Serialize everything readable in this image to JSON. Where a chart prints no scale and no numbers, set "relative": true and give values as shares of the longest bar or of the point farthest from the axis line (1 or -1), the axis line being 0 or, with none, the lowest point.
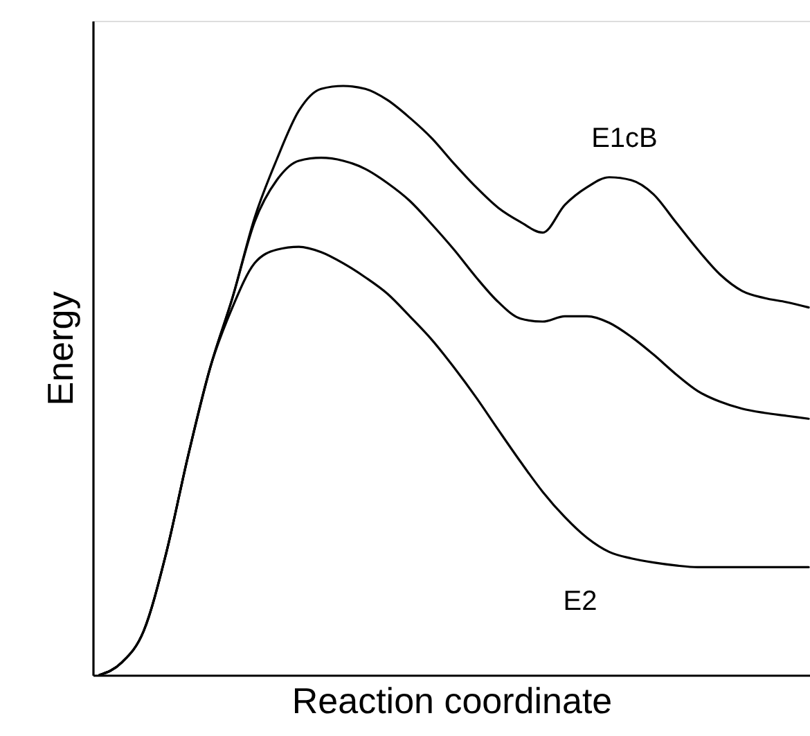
{
  "chart_data": {
    "type": "line",
    "relative": true,
    "xlabel": "Reaction coordinate",
    "ylabel": "Energy",
    "marker": "none",
    "line_style": "solid",
    "categories": [
      null,
      null,
      null,
      null,
      null,
      null,
      null,
      null,
      null,
      null,
      null,
      null,
      null,
      null,
      null,
      null,
      null,
      null,
      null,
      null,
      null,
      null,
      null,
      null,
      null,
      null,
      null,
      null,
      null,
      null,
      null,
      null,
      null
    ],
    "series": [
      {
        "name": "E1cB",
        "color": "#000000",
        "values": [
          0,
          0.021,
          0.075,
          0.205,
          0.372,
          0.522,
          0.64,
          0.776,
          0.875,
          0.958,
          0.995,
          1.0,
          0.995,
          0.976,
          0.946,
          0.911,
          0.868,
          0.828,
          0.793,
          0.769,
          0.751,
          0.798,
          0.828,
          0.845,
          0.84,
          0.816,
          0.769,
          0.722,
          0.68,
          0.652,
          0.64,
          0.633,
          0.624
        ]
      },
      {
        "color": "#000000",
        "values": [
          0,
          0.021,
          0.075,
          0.205,
          0.372,
          0.522,
          0.64,
          0.769,
          0.84,
          0.873,
          0.878,
          0.873,
          0.859,
          0.835,
          0.805,
          0.765,
          0.722,
          0.675,
          0.633,
          0.605,
          0.6,
          0.609,
          0.609,
          0.598,
          0.574,
          0.544,
          0.511,
          0.482,
          0.464,
          0.452,
          0.445,
          0.44,
          0.435
        ]
      },
      {
        "name": "E2",
        "color": "#000000",
        "values": [
          0,
          0.021,
          0.075,
          0.205,
          0.372,
          0.522,
          0.624,
          0.699,
          0.722,
          0.727,
          0.718,
          0.699,
          0.675,
          0.647,
          0.609,
          0.569,
          0.522,
          0.471,
          0.416,
          0.362,
          0.311,
          0.268,
          0.233,
          0.209,
          0.198,
          0.191,
          0.186,
          0.183,
          0.183,
          0.183,
          0.183,
          0.183,
          0.183
        ]
      }
    ]
  }
}
